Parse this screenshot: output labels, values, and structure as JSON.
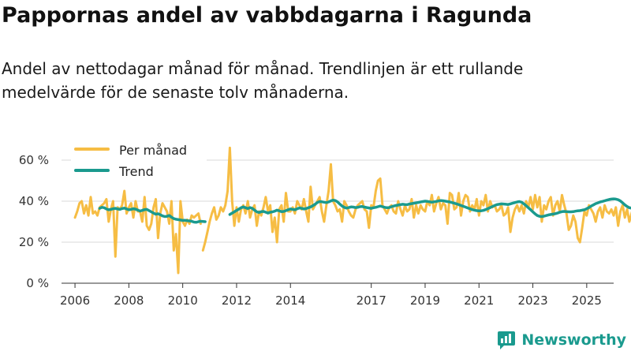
{
  "title": "Pappornas andel av vabbdagarna i Ragunda",
  "subtitle": "Andel av nettodagar månad för månad. Trendlinjen är ett rullande medelvärde för de senaste tolv månaderna.",
  "brand": {
    "name": "Newsworthy",
    "color": "#1a9a8e"
  },
  "chart_data": {
    "type": "line",
    "ylim": [
      0,
      60
    ],
    "xlim": [
      2005.5,
      2026.0
    ],
    "yticks": [
      0,
      20,
      40,
      60
    ],
    "ytick_labels": [
      "0 %",
      "20 %",
      "40 %",
      "60 %"
    ],
    "xticks": [
      2006,
      2008,
      2010,
      2012,
      2014,
      2017,
      2019,
      2021,
      2023,
      2025
    ],
    "xtick_labels": [
      "2006",
      "2008",
      "2010",
      "2012",
      "2014",
      "2017",
      "2019",
      "2021",
      "2023",
      "2025"
    ],
    "legend": {
      "position": "top-left",
      "entries": [
        "Per månad",
        "Trend"
      ]
    },
    "series": [
      {
        "name": "Per månad",
        "color": "#f6bd44",
        "segments": [
          {
            "start": 2006.0,
            "step": 0.08333,
            "values": [
              32,
              35,
              39,
              40,
              34,
              38,
              33,
              42,
              34,
              35,
              33,
              37,
              38,
              39,
              41,
              30,
              36,
              40,
              13,
              37,
              36,
              38,
              45,
              34,
              37,
              39,
              32,
              40,
              35,
              35,
              30,
              42,
              28,
              26,
              29,
              37,
              41,
              22,
              34,
              39,
              37,
              35,
              29,
              40,
              16,
              24,
              5,
              40,
              30,
              28,
              31,
              29,
              33,
              32,
              33,
              34,
              29
            ]
          },
          {
            "start": 2010.75,
            "step": 0.08333,
            "values": [
              16,
              20,
              25,
              30,
              34,
              37,
              31,
              33,
              37,
              35,
              38,
              45,
              66,
              40,
              28,
              37,
              30,
              36,
              38,
              34,
              40,
              32,
              36,
              38,
              28,
              35,
              33,
              37,
              42,
              35,
              38,
              25,
              32,
              20,
              36,
              38,
              30,
              44,
              35,
              35,
              37,
              34,
              40,
              38,
              36,
              41,
              35,
              30,
              47,
              36,
              38,
              40,
              42,
              35,
              30,
              38,
              45,
              58,
              40,
              38,
              35,
              36,
              30,
              40,
              38,
              35,
              33,
              32,
              36,
              38,
              39,
              40,
              36,
              35,
              27,
              38,
              37,
              45,
              50,
              51,
              38,
              36,
              34,
              37,
              38,
              35,
              34,
              40,
              36,
              33,
              38,
              35,
              36,
              41,
              32,
              38,
              34,
              38,
              36,
              35,
              40,
              38,
              43,
              35,
              39,
              42,
              36,
              39,
              38,
              29,
              44,
              43,
              36,
              37,
              44,
              33,
              40,
              43,
              42,
              35,
              38,
              36,
              41,
              33,
              40,
              38,
              43,
              35,
              40,
              37,
              38,
              35,
              36,
              38,
              33,
              34,
              37,
              25,
              32,
              36,
              38,
              35,
              38,
              34,
              40,
              37,
              42,
              36,
              43,
              37,
              42,
              30,
              38,
              36,
              40,
              42,
              33,
              38,
              40,
              35,
              43,
              38,
              34,
              26,
              28,
              33,
              30,
              22,
              20,
              27,
              35,
              33,
              38,
              36,
              34,
              30,
              35,
              37,
              32,
              38,
              35,
              34,
              36,
              33,
              37,
              28,
              35,
              38,
              32,
              36,
              30,
              34,
              38,
              36,
              40,
              37,
              35,
              42,
              46,
              53,
              47,
              40,
              37,
              38,
              36,
              40,
              38,
              35,
              34,
              30,
              36,
              37,
              40,
              38,
              35,
              36
            ]
          }
        ]
      },
      {
        "name": "Trend",
        "color": "#1a9a8e",
        "segments": [
          {
            "start": 2006.917,
            "step": 0.08333,
            "values": [
              36.5,
              37,
              36.8,
              36.2,
              35.8,
              36,
              36.3,
              36.5,
              36.2,
              36,
              36.4,
              36.6,
              36.2,
              35.8,
              36,
              36.3,
              36.1,
              35.6,
              35.2,
              35.5,
              35.9,
              36,
              35.4,
              34.8,
              34.2,
              33.6,
              33.9,
              33.4,
              32.8,
              32.5,
              32.6,
              33,
              32.2,
              31.5,
              31.2,
              31,
              30.8,
              30.6,
              30.7,
              30.5,
              30.4,
              30.2,
              29.8,
              29.7,
              30,
              30.2,
              30.1,
              30
            ]
          },
          {
            "start": 2011.75,
            "step": 0.08333,
            "values": [
              33.5,
              34.2,
              34.8,
              35.5,
              36.1,
              36.8,
              37.2,
              36.8,
              36.4,
              36.9,
              36.5,
              35.6,
              34.8,
              34.5,
              34.9,
              35,
              34.6,
              34.2,
              34.6,
              34.8,
              35.1,
              35.6,
              35.3,
              34.9,
              35,
              35.4,
              35.8,
              36.2,
              36,
              35.8,
              36.3,
              36.7,
              36.5,
              36.2,
              36.4,
              36.8,
              37.2,
              37.8,
              38.5,
              39.4,
              39.8,
              39.7,
              39.5,
              39.3,
              39.6,
              40.1,
              40.5,
              40.3,
              39.6,
              38.6,
              37.6,
              37,
              36.6,
              36.9,
              37.2,
              37.1,
              36.9,
              37,
              37.3,
              37.4,
              37.1,
              36.9,
              36.7,
              36.5,
              36.8,
              37,
              37.3,
              37.6,
              37.3,
              37,
              36.8,
              36.9,
              37.3,
              37.6,
              37.9,
              38.1,
              38.3,
              38.5,
              38.4,
              38.3,
              38.6,
              38.8,
              39,
              39.2,
              39.4,
              39.6,
              39.8,
              40,
              39.9,
              39.7,
              39.5,
              39.7,
              39.9,
              40.1,
              40.3,
              40.2,
              40,
              39.8,
              39.6,
              39.3,
              39,
              38.7,
              38.3,
              37.9,
              37.5,
              37.1,
              36.7,
              36.3,
              35.9,
              35.6,
              35.4,
              35.3,
              35.3,
              35.5,
              35.9,
              36.4,
              36.9,
              37.4,
              37.9,
              38.3,
              38.5,
              38.7,
              38.6,
              38.5,
              38.4,
              38.7,
              39,
              39.3,
              39.6,
              39.8,
              39.5,
              38.7,
              37.8,
              36.8,
              35.8,
              34.8,
              33.8,
              33,
              32.6,
              32.5,
              32.7,
              33,
              33.3,
              33.5,
              33.7,
              33.9,
              34.2,
              34.6,
              34.9,
              35,
              34.9,
              34.8,
              34.8,
              34.9,
              35.1,
              35.3,
              35.4,
              35.6,
              35.8,
              36.3,
              36.9,
              37.6,
              38.2,
              38.8,
              39.2,
              39.6,
              39.9,
              40.2,
              40.5,
              40.8,
              41,
              41.1,
              41,
              40.7,
              40.1,
              39.2,
              38.2,
              37.4,
              36.8,
              36.6,
              36.5,
              36.5
            ]
          }
        ]
      }
    ]
  }
}
